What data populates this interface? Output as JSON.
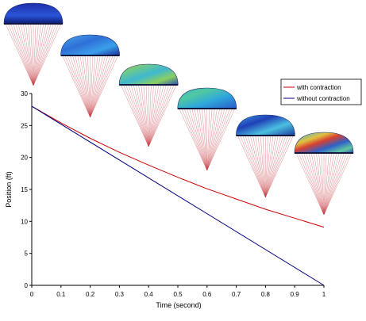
{
  "chart_data": {
    "type": "line",
    "xlabel": "Time (second)",
    "ylabel": "Position (ft)",
    "xlim": [
      0,
      1
    ],
    "ylim": [
      0,
      30
    ],
    "x_ticks": [
      "0",
      "0.1",
      "0.2",
      "0.3",
      "0.4",
      "0.5",
      "0.6",
      "0.7",
      "0.8",
      "0.9",
      "1"
    ],
    "y_ticks": [
      "0",
      "5",
      "10",
      "15",
      "20",
      "25",
      "30"
    ],
    "legend_position": "top-right",
    "grid": false,
    "series": [
      {
        "name": "with contraction",
        "color": "#cc0000",
        "x": [
          0,
          0.1,
          0.2,
          0.3,
          0.4,
          0.5,
          0.6,
          0.7,
          0.8,
          0.9,
          1.0
        ],
        "y": [
          28.0,
          25.4,
          23.0,
          20.8,
          18.8,
          16.9,
          15.1,
          13.5,
          11.9,
          10.5,
          9.1
        ]
      },
      {
        "name": "without contraction",
        "color": "#000080",
        "x": [
          0,
          1.0
        ],
        "y": [
          28.0,
          0.0
        ]
      }
    ],
    "parachutes": [
      {
        "x": 0.0,
        "canopy": "deep-blue"
      },
      {
        "x": 0.2,
        "canopy": "blue-cyan"
      },
      {
        "x": 0.4,
        "canopy": "cyan-green-yellow"
      },
      {
        "x": 0.6,
        "canopy": "cyan-green"
      },
      {
        "x": 0.8,
        "canopy": "blue-cyan-patches"
      },
      {
        "x": 1.0,
        "canopy": "mixed-red-blue"
      }
    ]
  }
}
